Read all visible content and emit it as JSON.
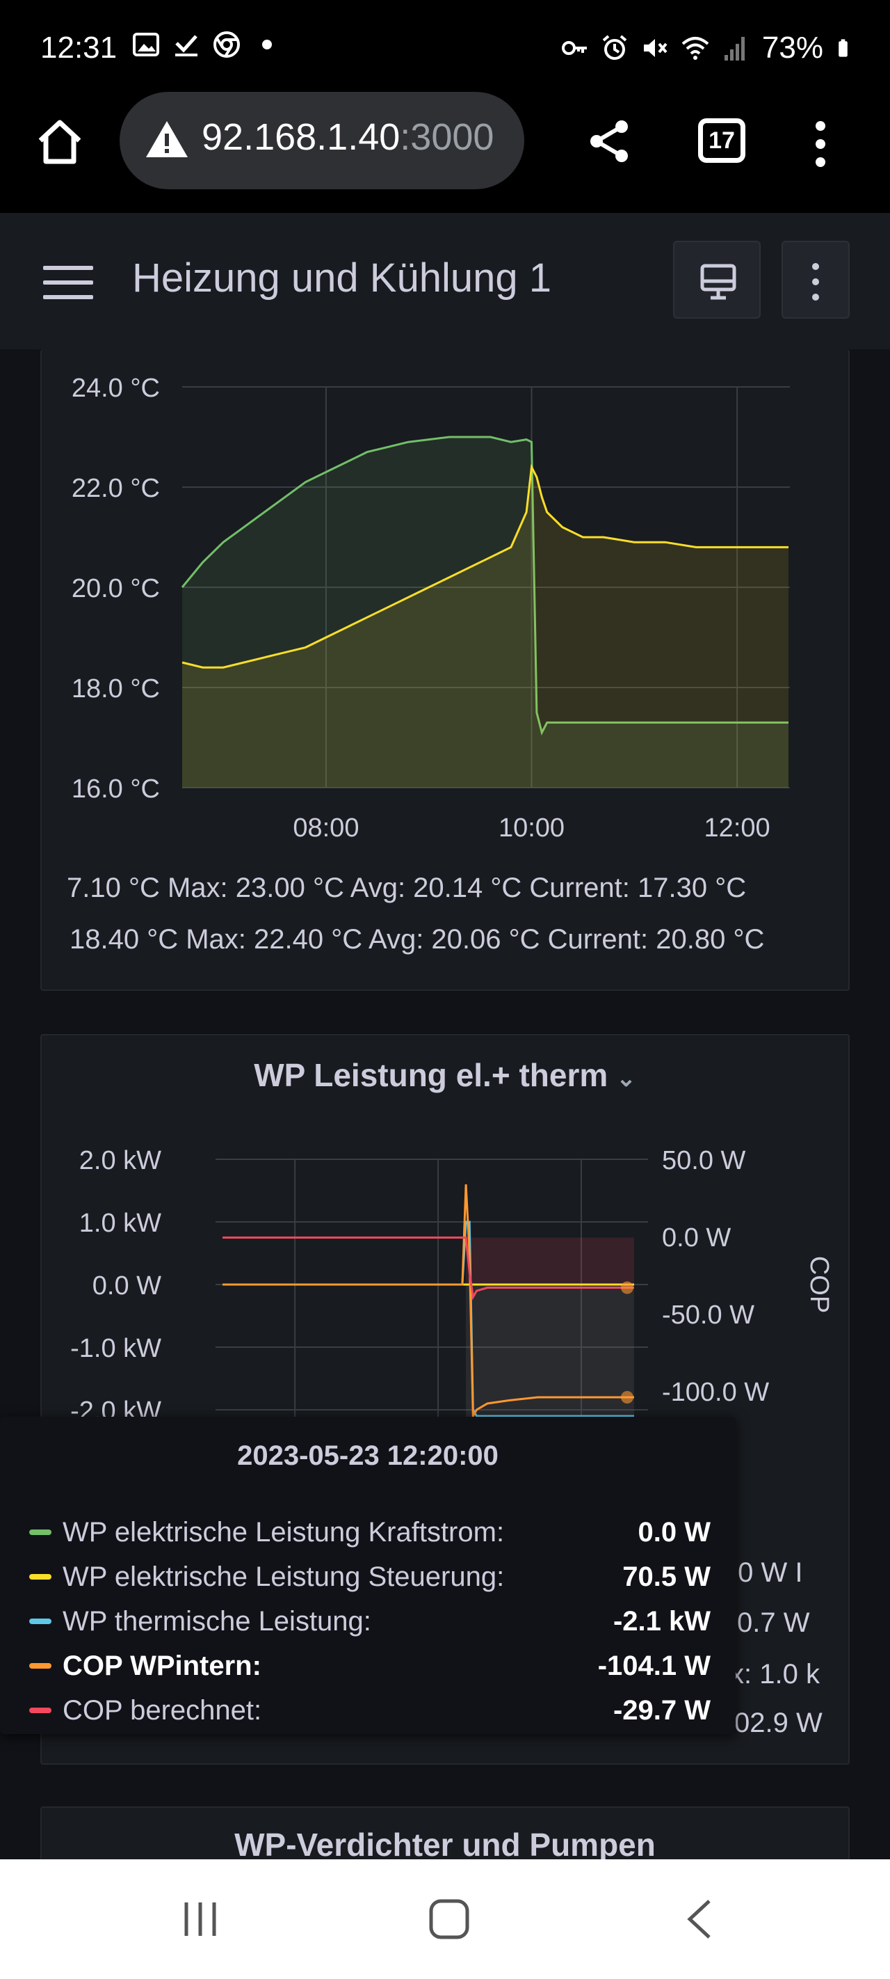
{
  "status_bar": {
    "time": "12:31",
    "battery": "73%",
    "left_icons": [
      "image-icon",
      "check-download-icon",
      "chrome-icon",
      "dot-icon"
    ],
    "right_icons": [
      "key-icon",
      "alarm-icon",
      "mute-icon",
      "wifi-icon",
      "signal-icon",
      "battery-icon"
    ]
  },
  "browser": {
    "url_host": "92.168.1.40",
    "url_port": ":3000",
    "tab_count": "17"
  },
  "dashboard": {
    "title": "Heizung und Kühlung 1"
  },
  "panel1": {
    "legend": [
      {
        "text": "7.10 °C  Max: 23.00 °C  Avg: 20.14 °C  Current: 17.30 °C"
      },
      {
        "text": "18.40 °C  Max: 22.40 °C  Avg: 20.06 °C  Current: 20.80 °C"
      }
    ]
  },
  "panel2": {
    "title": "WP Leistung el.+ therm",
    "right_axis_label": "COP",
    "legend_partial": [
      ".0 W  I",
      "0.7 W",
      "x: 1.0 k",
      "02.9 W"
    ]
  },
  "panel3": {
    "title": "WP-Verdichter und Pumpen"
  },
  "tooltip": {
    "time": "2023-05-23 12:20:00",
    "rows": [
      {
        "label": "WP elektrische Leistung Kraftstrom:",
        "value": "0.0 W",
        "color": "#73bf69"
      },
      {
        "label": "WP elektrische Leistung Steuerung:",
        "value": "70.5 W",
        "color": "#fade2a"
      },
      {
        "label": "WP thermische Leistung:",
        "value": "-2.1 kW",
        "color": "#5ec8e8"
      },
      {
        "label": "COP WPintern:",
        "value": "-104.1 W",
        "color": "#ff9830"
      },
      {
        "label": "COP berechnet:",
        "value": "-29.7 W",
        "color": "#f2495c"
      }
    ]
  },
  "chart_data": [
    {
      "type": "area",
      "ylim": [
        16,
        24
      ],
      "yticks": [
        "24.0 °C",
        "22.0 °C",
        "20.0 °C",
        "18.0 °C",
        "16.0 °C"
      ],
      "xticks": [
        "08:00",
        "10:00",
        "12:00"
      ],
      "x_hours": [
        6.6,
        6.8,
        7.0,
        7.2,
        7.4,
        7.6,
        7.8,
        8.0,
        8.2,
        8.4,
        8.6,
        8.8,
        9.0,
        9.2,
        9.4,
        9.6,
        9.8,
        9.95,
        10.0,
        10.05,
        10.1,
        10.15,
        10.3,
        10.5,
        10.7,
        11.0,
        11.3,
        11.6,
        12.0,
        12.5
      ],
      "series": [
        {
          "color": "#73bf69",
          "values": [
            20.0,
            20.5,
            20.9,
            21.2,
            21.5,
            21.8,
            22.1,
            22.3,
            22.5,
            22.7,
            22.8,
            22.9,
            22.95,
            23.0,
            23.0,
            23.0,
            22.9,
            22.95,
            22.9,
            17.5,
            17.1,
            17.3,
            17.3,
            17.3,
            17.3,
            17.3,
            17.3,
            17.3,
            17.3,
            17.3
          ]
        },
        {
          "color": "#fade2a",
          "values": [
            18.5,
            18.4,
            18.4,
            18.5,
            18.6,
            18.7,
            18.8,
            19.0,
            19.2,
            19.4,
            19.6,
            19.8,
            20.0,
            20.2,
            20.4,
            20.6,
            20.8,
            21.5,
            22.4,
            22.2,
            21.8,
            21.5,
            21.2,
            21.0,
            21.0,
            20.9,
            20.9,
            20.8,
            20.8,
            20.8
          ]
        }
      ]
    },
    {
      "type": "line",
      "ylim_left": [
        -2.0,
        2.0
      ],
      "yticks_left": [
        "2.0 kW",
        "1.0 kW",
        "0.0 W",
        "-1.0 kW",
        "-2.0 kW"
      ],
      "yticks_right": [
        "50.0 W",
        "0.0 W",
        "-50.0 W",
        "-100.0 W"
      ],
      "x_hours": [
        6.6,
        8.0,
        9.0,
        9.5,
        9.95,
        10.0,
        10.05,
        10.1,
        10.15,
        10.3,
        10.6,
        11.0,
        11.5,
        12.0,
        12.35
      ],
      "series": [
        {
          "color": "#73bf69",
          "values": [
            0.0,
            0.0,
            0.0,
            0.0,
            0.0,
            0.0,
            0.0,
            0.0,
            0.0,
            0.0,
            0.0,
            0.0,
            0.0,
            0.0,
            0.0
          ]
        },
        {
          "color": "#fade2a",
          "values": [
            0.0,
            0.0,
            0.0,
            0.0,
            0.0,
            0.0,
            0.0,
            0.0,
            0.0,
            0.0,
            0.0,
            0.0,
            0.0,
            0.0,
            0.0
          ]
        },
        {
          "color": "#5ec8e8",
          "values": [
            0.0,
            0.0,
            0.0,
            0.0,
            0.0,
            1.0,
            1.0,
            -2.0,
            -2.1,
            -2.1,
            -2.1,
            -2.1,
            -2.1,
            -2.1,
            -2.1
          ]
        },
        {
          "color": "#ff9830",
          "values": [
            0.0,
            0.0,
            0.0,
            0.0,
            0.0,
            1.6,
            0.5,
            -2.1,
            -2.0,
            -1.9,
            -1.85,
            -1.8,
            -1.8,
            -1.8,
            -1.8
          ]
        },
        {
          "color": "#f2495c",
          "values": [
            0.75,
            0.75,
            0.75,
            0.75,
            0.75,
            0.75,
            0.2,
            -0.2,
            -0.1,
            -0.05,
            -0.05,
            -0.05,
            -0.05,
            -0.05,
            -0.05
          ]
        }
      ]
    }
  ]
}
